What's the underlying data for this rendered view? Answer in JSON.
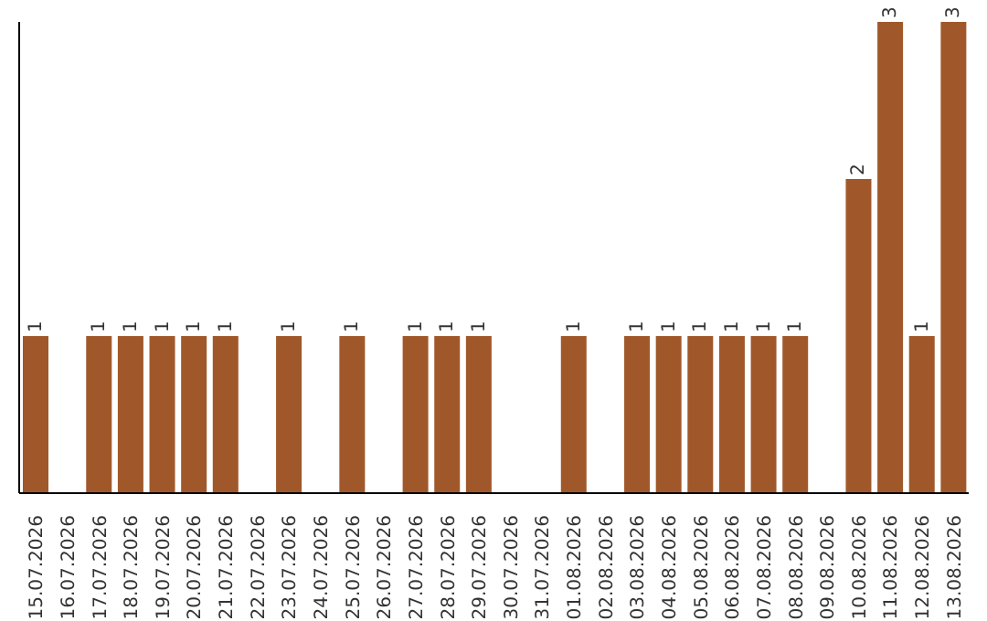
{
  "chart_data": {
    "type": "bar",
    "categories": [
      "15.07.2026",
      "16.07.2026",
      "17.07.2026",
      "18.07.2026",
      "19.07.2026",
      "20.07.2026",
      "21.07.2026",
      "22.07.2026",
      "23.07.2026",
      "24.07.2026",
      "25.07.2026",
      "26.07.2026",
      "27.07.2026",
      "28.07.2026",
      "29.07.2026",
      "30.07.2026",
      "31.07.2026",
      "01.08.2026",
      "02.08.2026",
      "03.08.2026",
      "04.08.2026",
      "05.08.2026",
      "06.08.2026",
      "07.08.2026",
      "08.08.2026",
      "09.08.2026",
      "10.08.2026",
      "11.08.2026",
      "12.08.2026",
      "13.08.2026"
    ],
    "values": [
      1,
      0,
      1,
      1,
      1,
      1,
      1,
      0,
      1,
      0,
      1,
      0,
      1,
      1,
      1,
      0,
      0,
      1,
      0,
      1,
      1,
      1,
      1,
      1,
      1,
      0,
      2,
      3,
      1,
      3
    ],
    "value_labels": [
      "1",
      null,
      "1",
      "1",
      "1",
      "1",
      "1",
      null,
      "1",
      null,
      "1",
      null,
      "1",
      "1",
      "1",
      null,
      null,
      "1",
      null,
      "1",
      "1",
      "1",
      "1",
      "1",
      "1",
      null,
      "2",
      "3",
      "1",
      "3"
    ],
    "color": "#a0582a",
    "ylim": [
      0,
      3
    ],
    "tick_labels": "x"
  }
}
